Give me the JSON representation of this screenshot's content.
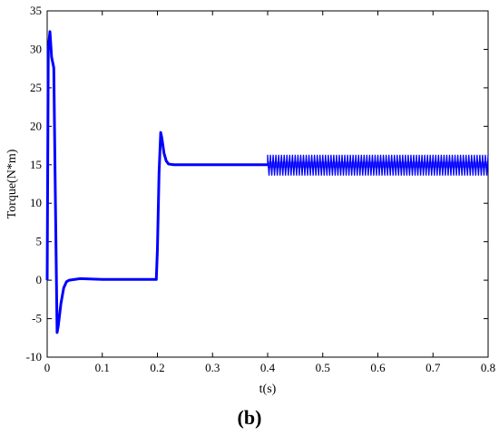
{
  "chart_data": {
    "type": "line",
    "xlabel": "t(s)",
    "ylabel": "Torque(N*m)",
    "xlim": [
      0,
      0.8
    ],
    "ylim": [
      -10,
      35
    ],
    "x_ticks": [
      0,
      0.1,
      0.2,
      0.3,
      0.4,
      0.5,
      0.6,
      0.7,
      0.8
    ],
    "y_ticks": [
      -10,
      -5,
      0,
      5,
      10,
      15,
      20,
      25,
      30,
      35
    ],
    "grid": false,
    "series_color": "#0000ff",
    "series": [
      {
        "x": [
          0,
          0.002,
          0.005,
          0.008,
          0.012,
          0.015,
          0.018,
          0.02,
          0.025,
          0.03,
          0.035,
          0.04,
          0.06,
          0.1,
          0.15,
          0.198,
          0.2,
          0.203,
          0.206,
          0.208,
          0.212,
          0.216,
          0.22,
          0.23,
          0.25,
          0.3,
          0.35,
          0.4
        ],
        "y": [
          0,
          30,
          32.3,
          29,
          27.6,
          10,
          -6.8,
          -6.0,
          -3,
          -1,
          -0.2,
          0,
          0.2,
          0.1,
          0.1,
          0.1,
          4,
          14,
          19.2,
          18.5,
          16.5,
          15.5,
          15.1,
          15.0,
          15.0,
          15.0,
          15.0,
          15.0
        ]
      },
      {
        "x_start": 0.4,
        "x_end": 0.8,
        "oscillation_center": 15,
        "oscillation_low": 13.6,
        "oscillation_high": 16.3
      }
    ]
  },
  "figure": {
    "panel_label": "(b)"
  }
}
